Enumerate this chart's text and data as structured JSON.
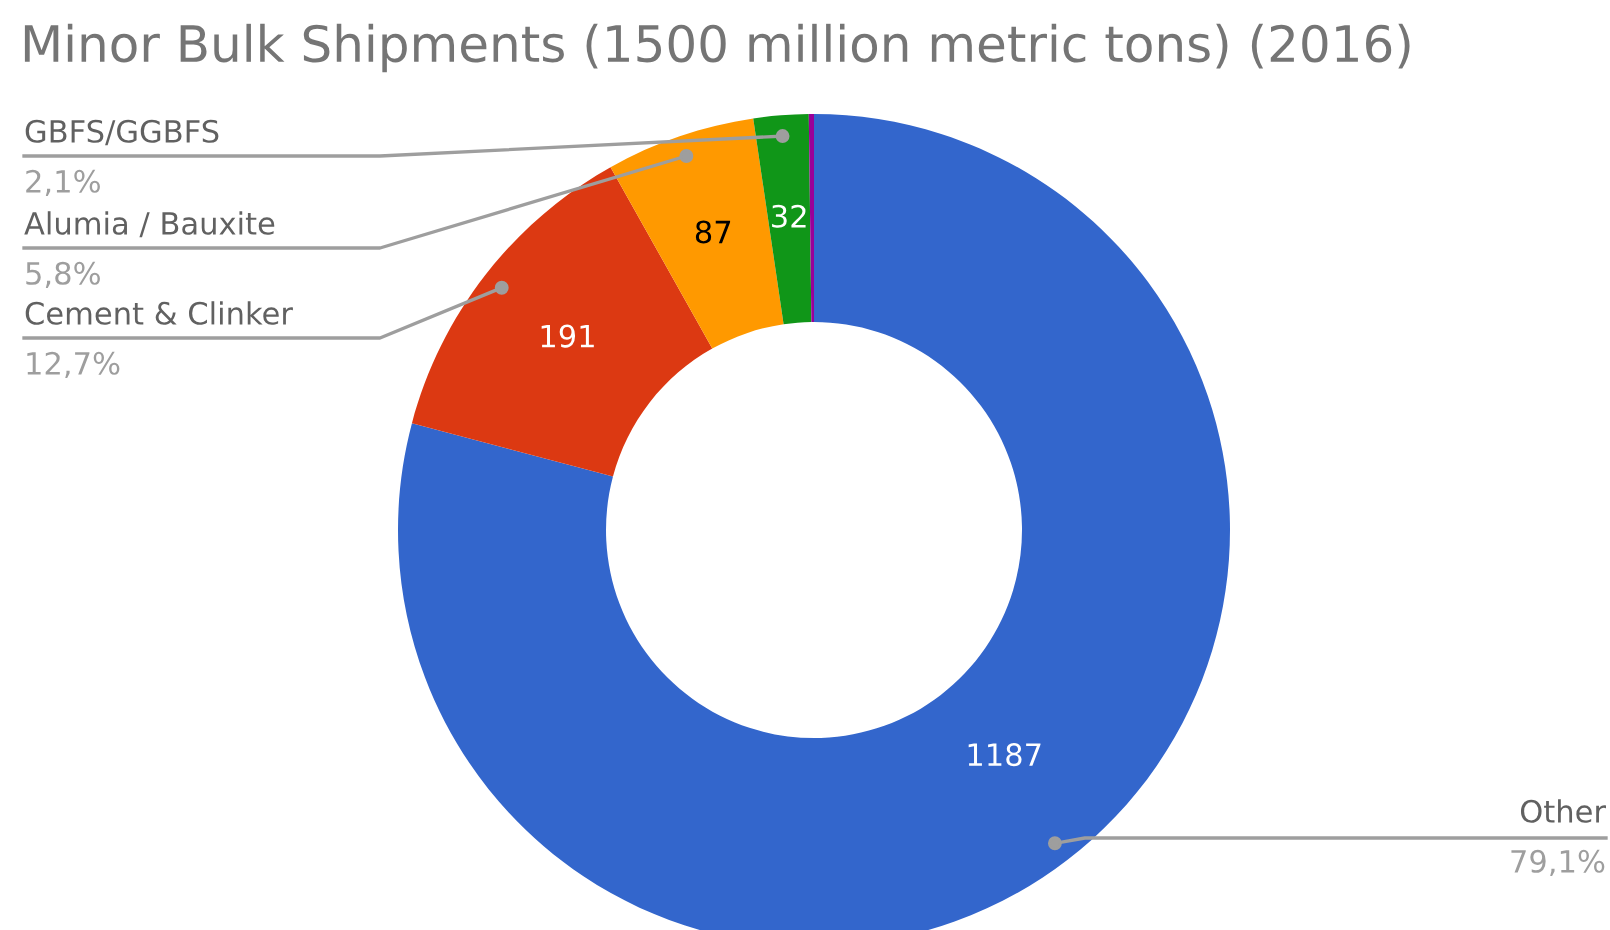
{
  "chart_data": {
    "type": "donut",
    "title": "Minor Bulk Shipments (1500 million metric tons) (2016)",
    "categories": [
      "Other",
      "Cement & Clinker",
      "Alumia / Bauxite",
      "GBFS/GGBFS",
      null
    ],
    "values": [
      1187,
      191,
      87,
      32,
      3
    ],
    "colors": [
      "#3366cc",
      "#dc3912",
      "#ff9900",
      "#109618",
      "#990099"
    ],
    "annotations": [
      "79,1%",
      "12,7%",
      "5,8%",
      "2,1%"
    ],
    "value_labels": [
      "1187",
      "191",
      "87",
      "32",
      null
    ]
  }
}
